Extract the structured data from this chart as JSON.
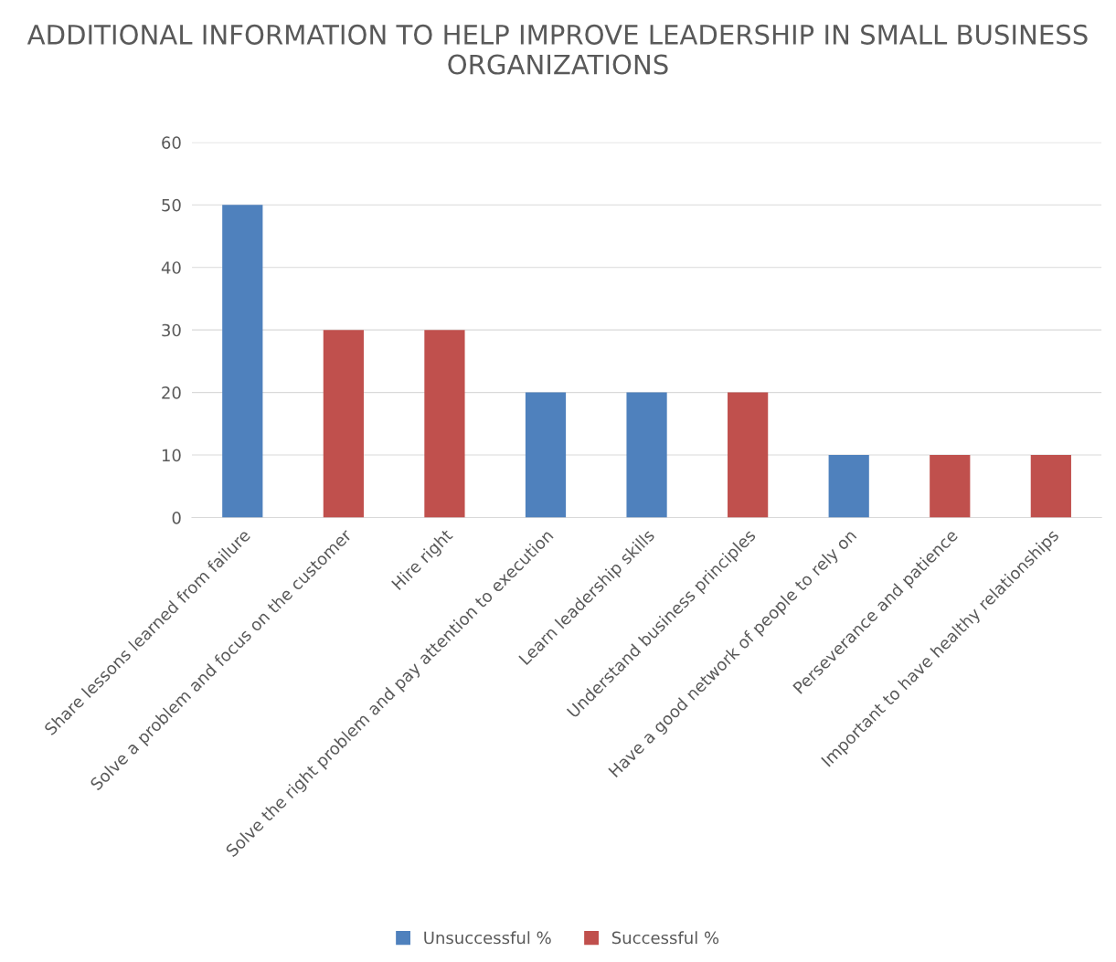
{
  "chart_data": {
    "type": "bar",
    "title": "ADDITIONAL INFORMATION TO HELP IMPROVE LEADERSHIP IN SMALL BUSINESS ORGANIZATIONS",
    "categories": [
      "Share lessons learned from failure",
      "Solve a problem and focus on the customer",
      "Hire right",
      "Solve the right problem and pay attention to execution",
      "Learn leadership skills",
      "Understand business principles",
      "Have a good network of people to rely on",
      "Perseverance and patience",
      "Important to have healthy relationships"
    ],
    "series": [
      {
        "name": "Unsuccessful %",
        "color": "#4f81bd",
        "values": [
          50,
          null,
          null,
          20,
          20,
          null,
          10,
          null,
          null
        ]
      },
      {
        "name": "Successful %",
        "color": "#c0504d",
        "values": [
          null,
          30,
          30,
          null,
          null,
          20,
          null,
          10,
          10
        ]
      }
    ],
    "stacked": true,
    "ylim": [
      0,
      60
    ],
    "yticks": [
      0,
      10,
      20,
      30,
      40,
      50,
      60
    ],
    "grid": "y",
    "legend": "bottom"
  }
}
